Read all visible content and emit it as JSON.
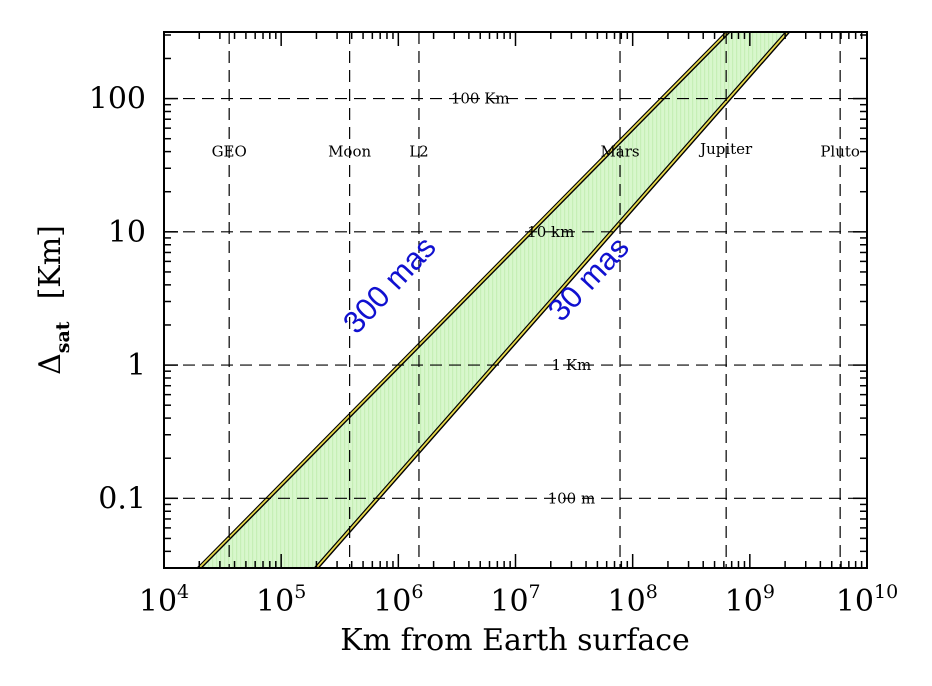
{
  "chart_data": {
    "type": "area",
    "xlabel": "Km from Earth surface",
    "ylabel_main": "Δ",
    "ylabel_sub": "sat",
    "ylabel_unit": "[Km]",
    "x_scale": "log",
    "y_scale": "log",
    "xlim": [
      10000,
      10000000000
    ],
    "ylim": [
      0.03,
      316
    ],
    "x_ticks": [
      {
        "base": "10",
        "exp": "4",
        "value": 10000
      },
      {
        "base": "10",
        "exp": "5",
        "value": 100000
      },
      {
        "base": "10",
        "exp": "6",
        "value": 1000000
      },
      {
        "base": "10",
        "exp": "7",
        "value": 10000000
      },
      {
        "base": "10",
        "exp": "8",
        "value": 100000000
      },
      {
        "base": "10",
        "exp": "9",
        "value": 1000000000
      },
      {
        "base": "10",
        "exp": "10",
        "value": 10000000000
      }
    ],
    "y_ticks": [
      {
        "label": "0.1",
        "value": 0.1
      },
      {
        "label": "1",
        "value": 1
      },
      {
        "label": "10",
        "value": 10
      },
      {
        "label": "100",
        "value": 100
      }
    ],
    "band": {
      "fill_color": "#d8f7cc",
      "stripe_color": "#c6efb6",
      "edge_color": "#000000",
      "edge_highlight": "#e8d84a",
      "upper": {
        "name": "300 mas",
        "color": "#1010d0",
        "x": [
          20000,
          650000000
        ],
        "y": [
          0.03,
          316
        ]
      },
      "lower": {
        "name": "30 mas",
        "color": "#1010d0",
        "x": [
          200000,
          2100000000
        ],
        "y": [
          0.03,
          316
        ]
      }
    },
    "reference_lines": {
      "vertical": [
        {
          "label": "GEO",
          "x": 36000,
          "label_y": 40
        },
        {
          "label": "Moon",
          "x": 384000,
          "label_y": 40
        },
        {
          "label": "L2",
          "x": 1500000,
          "label_y": 40
        },
        {
          "label": "Mars",
          "x": 78000000,
          "label_y": 40
        },
        {
          "label": "Jupiter",
          "x": 628000000,
          "label_y": 42
        },
        {
          "label": "Pluto",
          "x": 5900000000,
          "label_y": 40
        }
      ],
      "horizontal": [
        {
          "label": "100 Km",
          "y": 100,
          "label_x": 5000000
        },
        {
          "label": "10 km",
          "y": 10,
          "label_x": 20000000
        },
        {
          "label": "1 Km",
          "y": 1,
          "label_x": 30000000
        },
        {
          "label": "100 m",
          "y": 0.1,
          "label_x": 30000000
        }
      ]
    },
    "grid": false,
    "legend": "none"
  }
}
